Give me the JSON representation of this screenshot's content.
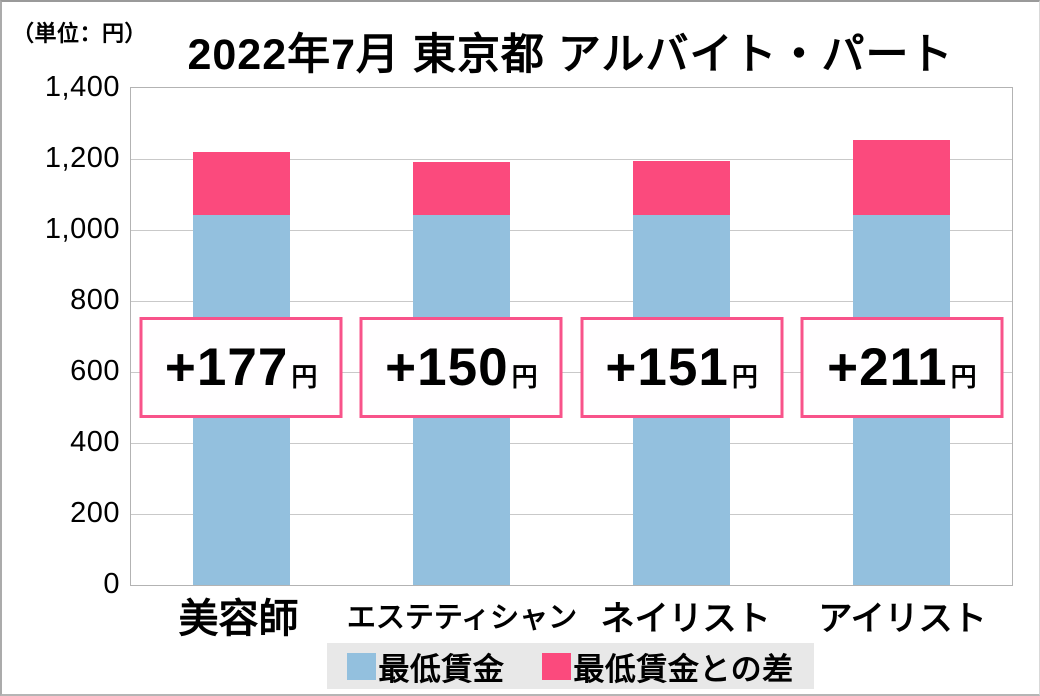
{
  "unit_label": "（単位：円）",
  "title": "2022年7月 東京都 アルバイト・パート",
  "chart_data": {
    "type": "bar",
    "stacked": true,
    "title": "2022年7月 東京都 アルバイト・パート",
    "unit": "円",
    "categories": [
      "美容師",
      "エステティシャン",
      "ネイリスト",
      "アイリスト"
    ],
    "series": [
      {
        "name": "最低賃金",
        "color": "#93c0de",
        "values": [
          1041,
          1041,
          1041,
          1041
        ]
      },
      {
        "name": "最低賃金との差",
        "color": "#fb4a7d",
        "values": [
          177,
          150,
          151,
          211
        ]
      }
    ],
    "totals": [
      1218,
      1191,
      1192,
      1252
    ],
    "annotations": [
      {
        "value": "+177",
        "unit": "円"
      },
      {
        "value": "+150",
        "unit": "円"
      },
      {
        "value": "+151",
        "unit": "円"
      },
      {
        "value": "+211",
        "unit": "円"
      }
    ],
    "ylim": [
      0,
      1400
    ],
    "yticks": [
      {
        "label": "1,400",
        "value": 1400
      },
      {
        "label": "1,200",
        "value": 1200
      },
      {
        "label": "1,000",
        "value": 1000
      },
      {
        "label": "800",
        "value": 800
      },
      {
        "label": "600",
        "value": 600
      },
      {
        "label": "400",
        "value": 400
      },
      {
        "label": "200",
        "value": 200
      },
      {
        "label": "0",
        "value": 0
      }
    ],
    "grid": true,
    "legend_position": "bottom"
  },
  "legend": {
    "items": [
      {
        "label": "最低賃金",
        "color": "#93c0de"
      },
      {
        "label": "最低賃金との差",
        "color": "#fb4a7d"
      }
    ]
  },
  "colors": {
    "bar_blue": "#93c0de",
    "bar_pink": "#fb4a7d",
    "annotation_border": "#f8538a",
    "gridline": "#c9c9c9",
    "plot_border": "#b3b3b3",
    "legend_bg": "#e8e8e8"
  }
}
